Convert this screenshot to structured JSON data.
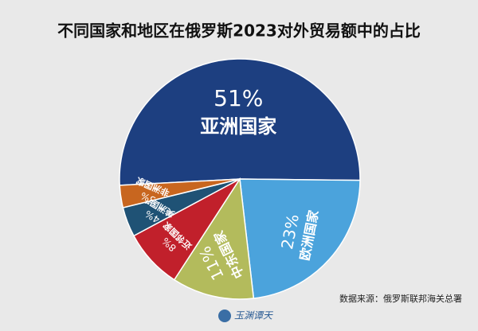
{
  "chart_data": {
    "type": "pie",
    "title": "不同国家和地区在俄罗斯2023对外贸易额中的占比",
    "categories": [
      "亚洲国家",
      "欧洲国家",
      "中东国家",
      "近邻国家",
      "美洲国家",
      "非洲国家"
    ],
    "values": [
      51,
      23,
      11,
      8,
      4,
      3
    ],
    "value_labels": [
      "51%",
      "23%",
      "11%",
      "8%",
      "4%",
      "3%"
    ],
    "colors": [
      "#1d3f80",
      "#4ba3dc",
      "#b3bb5c",
      "#c1202b",
      "#1f5275",
      "#c8661f"
    ],
    "source": "数据来源：俄罗斯联邦海关总署",
    "watermark": "玉渊谭天"
  }
}
